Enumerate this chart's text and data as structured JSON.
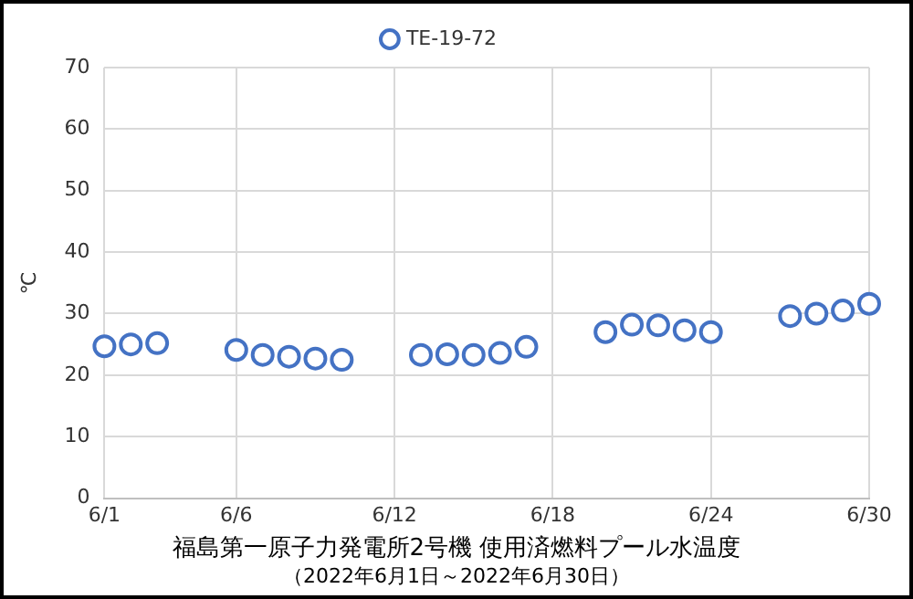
{
  "chart_data": {
    "type": "scatter",
    "title": "福島第一原子力発電所2号機 使用済燃料プール水温度",
    "subtitle": "（2022年6月1日～2022年6月30日）",
    "ylabel": "℃",
    "x": [
      "--06-01",
      "--06-02",
      "--06-03",
      "--06-06",
      "--06-07",
      "--06-08",
      "--06-09",
      "--06-10",
      "--06-13",
      "--06-14",
      "--06-15",
      "--06-16",
      "--06-17",
      "--06-20",
      "--06-21",
      "--06-22",
      "--06-23",
      "--06-24",
      "--06-27",
      "--06-28",
      "--06-29",
      "--06-30"
    ],
    "series": [
      {
        "name": "TE-19-72",
        "color": "#4472c4",
        "values": [
          24.7,
          25.0,
          25.2,
          24.1,
          23.3,
          23.0,
          22.7,
          22.5,
          23.3,
          23.4,
          23.3,
          23.6,
          24.6,
          27.0,
          28.2,
          28.1,
          27.3,
          27.0,
          29.6,
          30.0,
          30.5,
          31.6
        ]
      }
    ],
    "xlim": [
      "--06-01",
      "--06-30"
    ],
    "xticks": [
      {
        "value": "--06-01",
        "label": "6/1"
      },
      {
        "value": "--06-06",
        "label": "6/6"
      },
      {
        "value": "--06-12",
        "label": "6/12"
      },
      {
        "value": "--06-18",
        "label": "6/18"
      },
      {
        "value": "--06-24",
        "label": "6/24"
      },
      {
        "value": "--06-30",
        "label": "6/30"
      }
    ],
    "ylim": [
      0,
      70
    ],
    "yticks": [
      0,
      10,
      20,
      30,
      40,
      50,
      60,
      70
    ],
    "grid": true,
    "legend": "top",
    "marker": "circle"
  }
}
